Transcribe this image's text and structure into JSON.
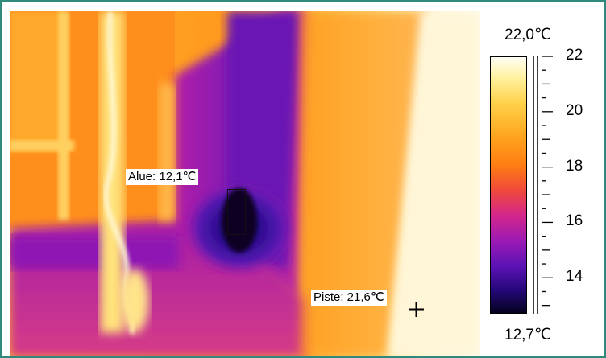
{
  "measurements": {
    "min_label": "Alue: 12,1℃",
    "spot_label": "Piste: 21,6℃"
  },
  "scale": {
    "max_label": "22,0℃",
    "min_label": "12,7℃",
    "ticks": [
      {
        "value": 22,
        "label": "22"
      },
      {
        "value": 20,
        "label": "20"
      },
      {
        "value": 18,
        "label": "18"
      },
      {
        "value": 16,
        "label": "16"
      },
      {
        "value": 14,
        "label": "14"
      }
    ],
    "range": [
      12.7,
      22.0
    ]
  },
  "colors": {
    "frame": "#2f8a7c"
  }
}
